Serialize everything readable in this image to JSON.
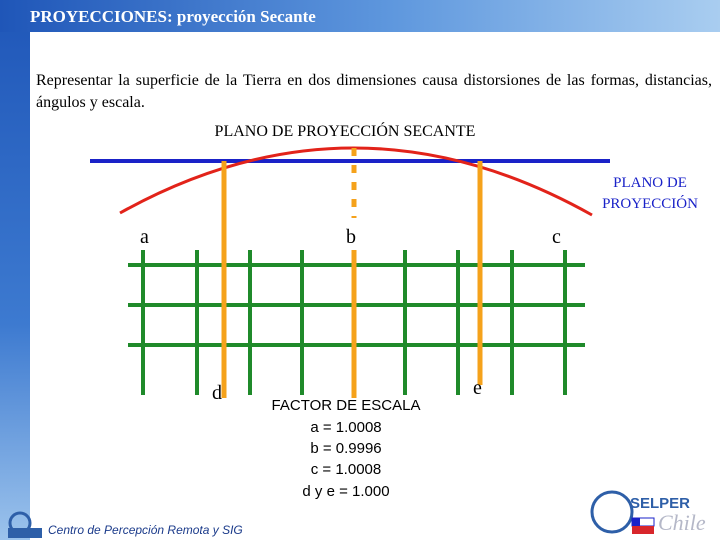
{
  "header": {
    "title": "PROYECCIONES: proyección Secante"
  },
  "body": {
    "paragraph": "Representar la superficie de la Tierra en dos dimensiones causa distorsiones de las formas, distancias, ángulos y escala."
  },
  "diagram": {
    "title": "PLANO DE PROYECCIÓN SECANTE",
    "plane_label": [
      "PLANO DE",
      "PROYECCIÓN"
    ],
    "points": {
      "a": "a",
      "b": "b",
      "c": "c",
      "d": "d",
      "e": "e"
    },
    "scale_factor": {
      "heading": "FACTOR DE ESCALA",
      "lines": [
        "a = 1.0008",
        "b = 0.9996",
        "c = 1.0008",
        "d y e = 1.000"
      ]
    }
  },
  "footer": {
    "text": "Centro de Percepción Remota y SIG",
    "logo_name": "SELPER",
    "logo_country": "Chile"
  }
}
